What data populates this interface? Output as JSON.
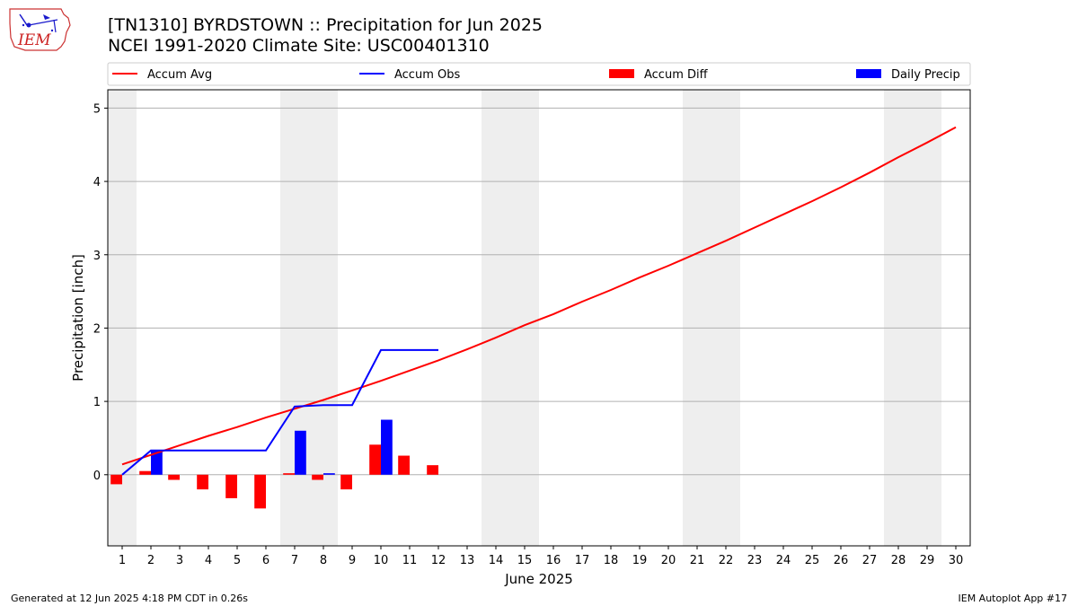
{
  "header": {
    "title_line1": "[TN1310] BYRDSTOWN :: Precipitation for Jun 2025",
    "title_line2": "NCEI 1991-2020 Climate Site: USC00401310"
  },
  "logo": {
    "text": "IEM",
    "icon": "iem-logo-icon"
  },
  "footer": {
    "generated": "Generated at 12 Jun 2025 4:18 PM CDT in 0.26s",
    "app": "IEM Autoplot App #17"
  },
  "colors": {
    "avg": "#ff0000",
    "obs": "#0000ff",
    "diff": "#ff0000",
    "daily": "#0000ff",
    "weekend_band": "#eeeeee",
    "grid": "#b0b0b0"
  },
  "chart_data": {
    "type": "bar",
    "xlabel": "June 2025",
    "ylabel": "Precipitation [inch]",
    "xlim": [
      0.5,
      30.5
    ],
    "ylim": [
      -0.97,
      5.25
    ],
    "x_ticks": [
      1,
      2,
      3,
      4,
      5,
      6,
      7,
      8,
      9,
      10,
      11,
      12,
      13,
      14,
      15,
      16,
      17,
      18,
      19,
      20,
      21,
      22,
      23,
      24,
      25,
      26,
      27,
      28,
      29,
      30
    ],
    "y_ticks": [
      0,
      1,
      2,
      3,
      4,
      5
    ],
    "grid": "horizontal",
    "legend_position": "top",
    "legend": [
      {
        "label": "Accum Avg",
        "kind": "line",
        "color": "#ff0000"
      },
      {
        "label": "Accum Obs",
        "kind": "line",
        "color": "#0000ff"
      },
      {
        "label": "Accum Diff",
        "kind": "bar",
        "color": "#ff0000"
      },
      {
        "label": "Daily Precip",
        "kind": "bar",
        "color": "#0000ff"
      }
    ],
    "shaded_weekend_days": [
      1,
      7,
      8,
      14,
      15,
      21,
      22,
      28,
      29
    ],
    "series": [
      {
        "name": "Accum Avg",
        "kind": "line",
        "x": [
          1,
          2,
          3,
          4,
          5,
          6,
          7,
          8,
          9,
          10,
          11,
          12,
          13,
          14,
          15,
          16,
          17,
          18,
          19,
          20,
          21,
          22,
          23,
          24,
          25,
          26,
          27,
          28,
          29,
          30
        ],
        "values": [
          0.14,
          0.27,
          0.4,
          0.53,
          0.65,
          0.78,
          0.9,
          1.02,
          1.15,
          1.28,
          1.42,
          1.56,
          1.71,
          1.87,
          2.04,
          2.19,
          2.36,
          2.52,
          2.69,
          2.85,
          3.02,
          3.19,
          3.37,
          3.55,
          3.73,
          3.92,
          4.12,
          4.33,
          4.53,
          4.74
        ]
      },
      {
        "name": "Accum Obs",
        "kind": "line",
        "x": [
          1,
          2,
          3,
          4,
          5,
          6,
          7,
          8,
          9,
          10,
          11,
          12
        ],
        "values": [
          0.0,
          0.33,
          0.33,
          0.33,
          0.33,
          0.33,
          0.93,
          0.95,
          0.95,
          1.7,
          1.7,
          1.7
        ]
      },
      {
        "name": "Accum Diff",
        "kind": "bar",
        "x": [
          1,
          2,
          3,
          4,
          5,
          6,
          7,
          8,
          9,
          10,
          11,
          12
        ],
        "values": [
          -0.13,
          0.05,
          -0.07,
          -0.2,
          -0.32,
          -0.46,
          0.02,
          -0.07,
          -0.2,
          0.41,
          0.26,
          0.13
        ]
      },
      {
        "name": "Daily Precip",
        "kind": "bar",
        "x": [
          1,
          2,
          3,
          4,
          5,
          6,
          7,
          8,
          9,
          10,
          11,
          12
        ],
        "values": [
          0.0,
          0.33,
          0.0,
          0.0,
          0.0,
          0.0,
          0.6,
          0.02,
          0.0,
          0.75,
          0.0,
          0.0
        ]
      }
    ]
  }
}
